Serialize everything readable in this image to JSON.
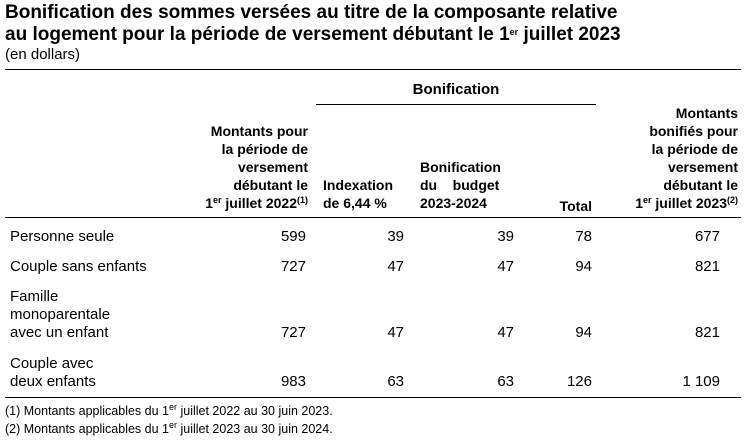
{
  "title": {
    "line1": "Bonification des sommes versées au titre de la composante relative",
    "line2_prefix": "au logement pour la période de versement débutant le 1",
    "line2_sup": "er",
    "line2_suffix": " juillet 2023"
  },
  "subtitle": "(en dollars)",
  "headers": {
    "group": "Bonification",
    "col1": {
      "lines": [
        "Montants pour",
        "la période de",
        "versement",
        "débutant le"
      ],
      "last_pre": "1",
      "last_sup": "er",
      "last_post": " juillet 2022",
      "note": "(1)"
    },
    "col2": {
      "lines": [
        "Indexation",
        "de 6,44 %"
      ]
    },
    "col3": {
      "lines": [
        "Bonification",
        "du    budget",
        "2023-2024"
      ]
    },
    "col4": "Total",
    "col5": {
      "lines": [
        "Montants",
        "bonifiés pour",
        "la période de",
        "versement",
        "débutant le"
      ],
      "last_pre": "1",
      "last_sup": "er",
      "last_post": " juillet 2023",
      "note": "(2)"
    }
  },
  "rows": [
    {
      "label": [
        "Personne seule"
      ],
      "values": [
        "599",
        "39",
        "39",
        "78",
        "677"
      ]
    },
    {
      "label": [
        "Couple sans enfants"
      ],
      "values": [
        "727",
        "47",
        "47",
        "94",
        "821"
      ]
    },
    {
      "label": [
        "Famille",
        "monoparentale",
        "avec un enfant"
      ],
      "values": [
        "727",
        "47",
        "47",
        "94",
        "821"
      ]
    },
    {
      "label": [
        "Couple avec",
        "deux enfants"
      ],
      "values": [
        "983",
        "63",
        "63",
        "126",
        "1 109"
      ]
    }
  ],
  "footnotes": [
    {
      "pre": "(1)  Montants applicables du 1",
      "sup": "er",
      "post": " juillet 2022 au 30 juin 2023."
    },
    {
      "pre": "(2)  Montants applicables du 1",
      "sup": "er",
      "post": " juillet 2023 au 30 juin 2024."
    }
  ]
}
